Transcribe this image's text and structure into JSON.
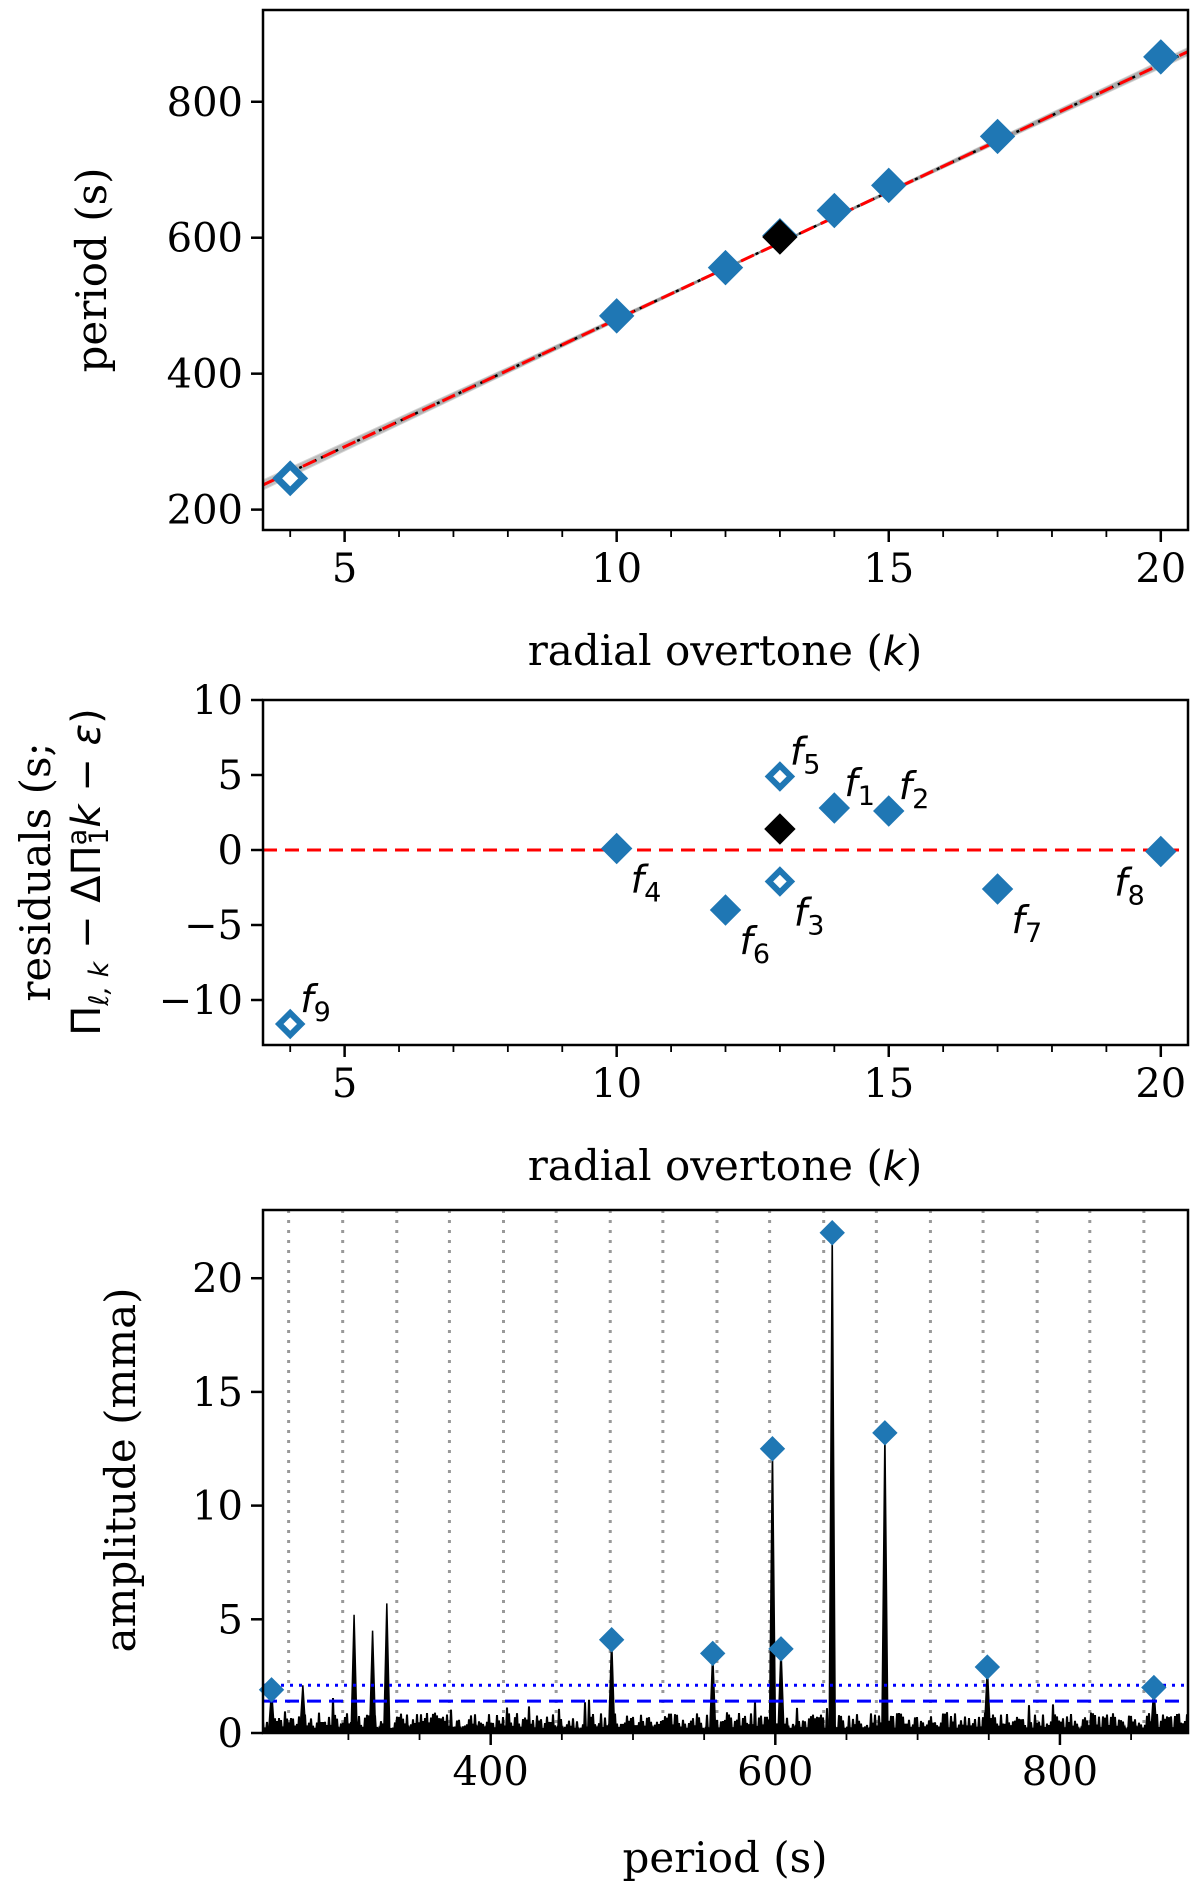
{
  "colors": {
    "marker": "#1f77b4",
    "highlight": "#000000",
    "fit_line": "#ff0000",
    "mc_lines": "#888888",
    "threshold": "#0000ff",
    "grid": "#999999",
    "spectrum": "#000000"
  },
  "chart_data": [
    {
      "id": "period-vs-k",
      "type": "scatter",
      "xlabel": "radial overtone (k)",
      "ylabel": "period (s)",
      "xlim": [
        3.5,
        20.5
      ],
      "ylim": [
        170,
        935
      ],
      "xticks": [
        5,
        10,
        15,
        20
      ],
      "yticks": [
        200,
        400,
        600,
        800
      ],
      "fit_line": {
        "slope": 37.5,
        "intercept": 105.0,
        "style": "dashed-red"
      },
      "points": [
        {
          "k": 4,
          "period": 246,
          "filled": false,
          "color": "marker"
        },
        {
          "k": 10,
          "period": 485,
          "filled": true,
          "color": "marker"
        },
        {
          "k": 12,
          "period": 556,
          "filled": true,
          "color": "marker"
        },
        {
          "k": 13,
          "period": 603,
          "filled": true,
          "color": "marker"
        },
        {
          "k": 13,
          "period": 601,
          "filled": true,
          "color": "highlight"
        },
        {
          "k": 14,
          "period": 640,
          "filled": true,
          "color": "marker"
        },
        {
          "k": 15,
          "period": 677,
          "filled": true,
          "color": "marker"
        },
        {
          "k": 17,
          "period": 749,
          "filled": true,
          "color": "marker"
        },
        {
          "k": 20,
          "period": 866,
          "filled": true,
          "color": "marker"
        }
      ]
    },
    {
      "id": "residuals",
      "type": "scatter",
      "xlabel": "radial overtone (k)",
      "ylabel_line1": "residuals (s;",
      "ylabel_line2": "Π",
      "xlim": [
        3.5,
        20.5
      ],
      "ylim": [
        -13,
        10
      ],
      "xticks": [
        5,
        10,
        15,
        20
      ],
      "yticks": [
        -10,
        -5,
        0,
        5,
        10
      ],
      "zero_line": 0,
      "points": [
        {
          "k": 4,
          "residual": -11.6,
          "filled": false,
          "label": "f",
          "sub": "9",
          "label_pos": "upper-right",
          "color": "marker"
        },
        {
          "k": 10,
          "residual": 0.1,
          "filled": true,
          "label": "f",
          "sub": "4",
          "label_pos": "lower-right",
          "color": "marker"
        },
        {
          "k": 12,
          "residual": -4.0,
          "filled": true,
          "label": "f",
          "sub": "6",
          "label_pos": "lower-right",
          "color": "marker"
        },
        {
          "k": 13,
          "residual": 4.9,
          "filled": false,
          "label": "f",
          "sub": "5",
          "label_pos": "upper-right",
          "color": "marker"
        },
        {
          "k": 13,
          "residual": 1.4,
          "filled": true,
          "label": "",
          "sub": "",
          "label_pos": "none",
          "color": "highlight"
        },
        {
          "k": 13,
          "residual": -2.1,
          "filled": false,
          "label": "f",
          "sub": "3",
          "label_pos": "lower-right",
          "color": "marker"
        },
        {
          "k": 14,
          "residual": 2.8,
          "filled": true,
          "label": "f",
          "sub": "1",
          "label_pos": "upper-right",
          "color": "marker"
        },
        {
          "k": 15,
          "residual": 2.6,
          "filled": true,
          "label": "f",
          "sub": "2",
          "label_pos": "upper-right",
          "color": "marker"
        },
        {
          "k": 17,
          "residual": -2.6,
          "filled": true,
          "label": "f",
          "sub": "7",
          "label_pos": "lower-right",
          "color": "marker"
        },
        {
          "k": 20,
          "residual": -0.1,
          "filled": true,
          "label": "f",
          "sub": "8",
          "label_pos": "lower-left",
          "color": "marker"
        }
      ]
    },
    {
      "id": "periodogram",
      "type": "line",
      "xlabel": "period (s)",
      "ylabel": "amplitude (mma)",
      "xlim": [
        240,
        890
      ],
      "ylim": [
        0,
        23
      ],
      "xticks": [
        400,
        600,
        800
      ],
      "yticks": [
        0,
        5,
        10,
        15,
        20
      ],
      "thresholds": [
        {
          "value": 2.1,
          "style": "dotted"
        },
        {
          "value": 1.4,
          "style": "dashed"
        }
      ],
      "grid_periods": [
        258,
        296,
        334,
        371,
        409,
        446,
        484,
        521,
        559,
        596,
        634,
        671,
        709,
        746,
        784,
        821,
        859
      ],
      "peaks": [
        {
          "period": 246,
          "amplitude": 1.9,
          "marked": true
        },
        {
          "period": 268,
          "amplitude": 2.1,
          "marked": false
        },
        {
          "period": 304,
          "amplitude": 5.2,
          "marked": false
        },
        {
          "period": 317,
          "amplitude": 4.5,
          "marked": false
        },
        {
          "period": 327,
          "amplitude": 5.7,
          "marked": false
        },
        {
          "period": 485,
          "amplitude": 4.1,
          "marked": true
        },
        {
          "period": 556,
          "amplitude": 3.5,
          "marked": true
        },
        {
          "period": 598,
          "amplitude": 12.5,
          "marked": true
        },
        {
          "period": 604,
          "amplitude": 3.7,
          "marked": true
        },
        {
          "period": 640,
          "amplitude": 22.0,
          "marked": true
        },
        {
          "period": 677,
          "amplitude": 13.2,
          "marked": true
        },
        {
          "period": 749,
          "amplitude": 2.9,
          "marked": true
        },
        {
          "period": 866,
          "amplitude": 2.0,
          "marked": true
        }
      ]
    }
  ]
}
